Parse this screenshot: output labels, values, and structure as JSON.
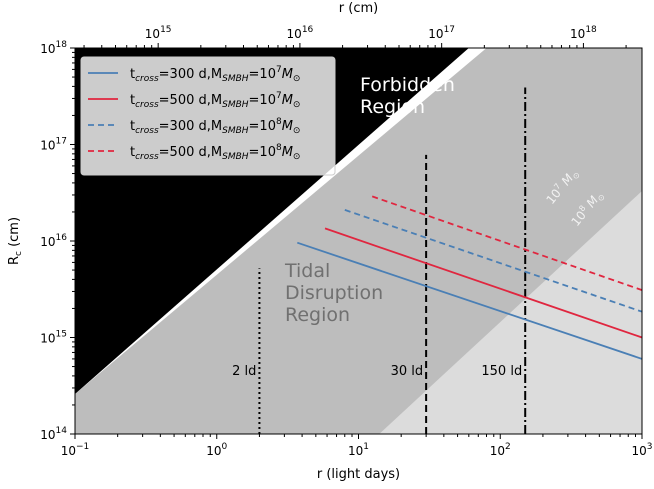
{
  "chart_data": {
    "type": "line",
    "xlabel": "r (light days)",
    "x2label": "r (cm)",
    "ylabel_main": "R",
    "ylabel_sub": "c",
    "ylabel_unit": " (cm)",
    "xscale": "log",
    "yscale": "log",
    "xlim": [
      0.1,
      1000
    ],
    "ylim": [
      100000000000000.0,
      1e+18
    ],
    "x2lim": [
      259000000000000.0,
      2.59e+18
    ],
    "x_ticks": [
      {
        "v": 0.1,
        "base": "10",
        "exp": "−1"
      },
      {
        "v": 1,
        "base": "10",
        "exp": "0"
      },
      {
        "v": 10,
        "base": "10",
        "exp": "1"
      },
      {
        "v": 100,
        "base": "10",
        "exp": "2"
      },
      {
        "v": 1000,
        "base": "10",
        "exp": "3"
      }
    ],
    "x2_ticks": [
      {
        "v": 1000000000000000.0,
        "base": "10",
        "exp": "15"
      },
      {
        "v": 1e+16,
        "base": "10",
        "exp": "16"
      },
      {
        "v": 1e+17,
        "base": "10",
        "exp": "17"
      },
      {
        "v": 1e+18,
        "base": "10",
        "exp": "18"
      }
    ],
    "y_ticks": [
      {
        "v": 100000000000000.0,
        "base": "10",
        "exp": "14"
      },
      {
        "v": 1000000000000000.0,
        "base": "10",
        "exp": "15"
      },
      {
        "v": 1e+16,
        "base": "10",
        "exp": "16"
      },
      {
        "v": 1e+17,
        "base": "10",
        "exp": "17"
      },
      {
        "v": 1e+18,
        "base": "10",
        "exp": "18"
      }
    ],
    "regions": {
      "forbidden_label": [
        "Forbidden",
        "Region"
      ],
      "tidal_label": [
        "Tidal",
        "Disruption",
        "Region"
      ],
      "band_labels": [
        {
          "base": "10",
          "exp": "7",
          "sym": "M",
          "sub": "⊙"
        },
        {
          "base": "10",
          "exp": "8",
          "sym": "M",
          "sub": "⊙"
        }
      ]
    },
    "series": [
      {
        "name_main": "t",
        "name_sub": "cross",
        "name_mid": "=300 d,M",
        "name_sub2": "SMBH",
        "name_eq": "=10",
        "name_exp": "7",
        "name_sym": "M",
        "name_symsub": "⊙",
        "color": "#4a7fb5",
        "dash": "solid",
        "x": [
          3.7,
          1000
        ],
        "y": [
          9600000000000000.0,
          600000000000000.0
        ]
      },
      {
        "name_main": "t",
        "name_sub": "cross",
        "name_mid": "=500 d,M",
        "name_sub2": "SMBH",
        "name_eq": "=10",
        "name_exp": "7",
        "name_sym": "M",
        "name_symsub": "⊙",
        "color": "#e0263f",
        "dash": "solid",
        "x": [
          5.8,
          1000
        ],
        "y": [
          1.35e+16,
          1000000000000000.0
        ]
      },
      {
        "name_main": "t",
        "name_sub": "cross",
        "name_mid": "=300 d,M",
        "name_sub2": "SMBH",
        "name_eq": "=10",
        "name_exp": "8",
        "name_sym": "M",
        "name_symsub": "⊙",
        "color": "#4a7fb5",
        "dash": "dashed",
        "x": [
          8,
          1000
        ],
        "y": [
          2.1e+16,
          1850000000000000.0
        ]
      },
      {
        "name_main": "t",
        "name_sub": "cross",
        "name_mid": "=500 d,M",
        "name_sub2": "SMBH",
        "name_eq": "=10",
        "name_exp": "8",
        "name_sym": "M",
        "name_symsub": "⊙",
        "color": "#e0263f",
        "dash": "dashed",
        "x": [
          12.5,
          1000
        ],
        "y": [
          2.9e+16,
          3100000000000000.0
        ]
      }
    ],
    "vlines": [
      {
        "x": 2,
        "label": "2 ld",
        "style": "dotted",
        "ytop": 5200000000000000.0
      },
      {
        "x": 30,
        "label": "30 ld",
        "style": "dashed",
        "ytop": 7.8e+16
      },
      {
        "x": 150,
        "label": "150 ld",
        "style": "dashdot",
        "ytop": 3.9e+17
      }
    ],
    "legend_position": "upper-left",
    "grid": false,
    "colors": {
      "forbidden": "#000000",
      "tidal": "#bdbdbd",
      "band": "#dcdcdc",
      "tidal_text": "#707070",
      "band_text": "#f2f2f2"
    }
  }
}
